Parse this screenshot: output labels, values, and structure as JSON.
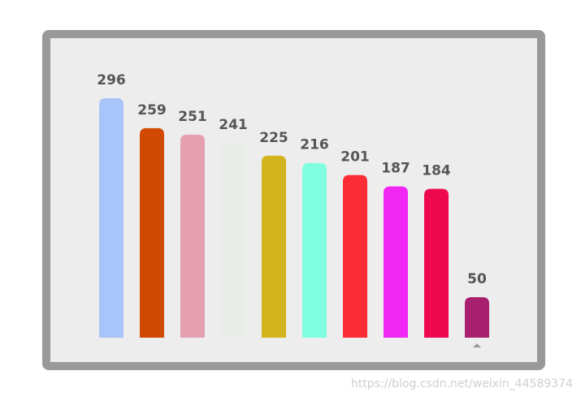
{
  "chart_data": {
    "type": "bar",
    "values": [
      296,
      259,
      251,
      241,
      225,
      216,
      201,
      187,
      184,
      50
    ],
    "colors": [
      "#a9c4f8",
      "#d04a02",
      "#e4a0b0",
      "#e8ede8",
      "#d4b41e",
      "#7fffdf",
      "#fb2c35",
      "#f026f3",
      "#ee0850",
      "#a81f6e"
    ]
  },
  "watermark": "https://blog.csdn.net/weixin_44589374"
}
